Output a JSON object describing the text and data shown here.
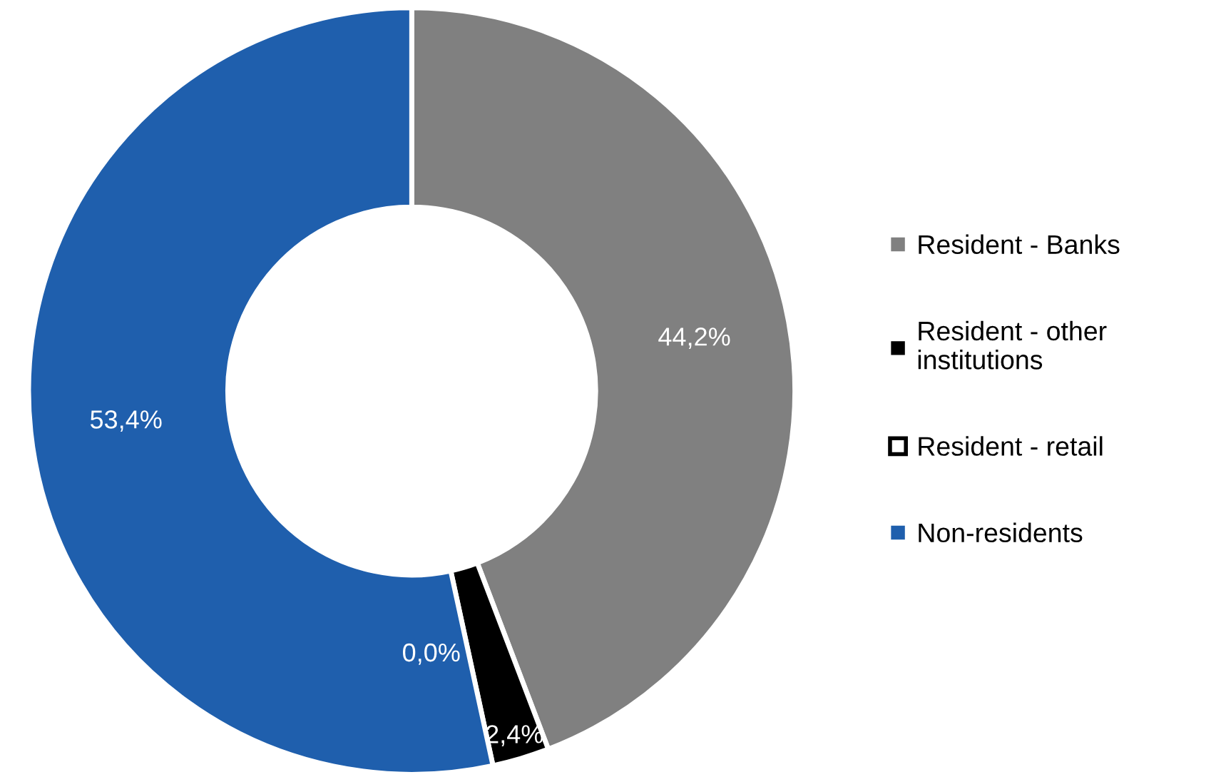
{
  "chart_data": {
    "type": "donut",
    "categories": [
      "Resident - Banks",
      "Resident - other\ninstitutions",
      "Resident - retail",
      "Non-residents"
    ],
    "values": [
      44.2,
      2.4,
      0.0,
      53.4
    ],
    "colors": [
      "#808080",
      "#000000",
      "#ffffff",
      "#1f5fad"
    ],
    "value_labels": [
      "44,2%",
      "2,4%",
      "0,0%",
      "53,4%"
    ],
    "legend": "right",
    "marker": "square"
  }
}
